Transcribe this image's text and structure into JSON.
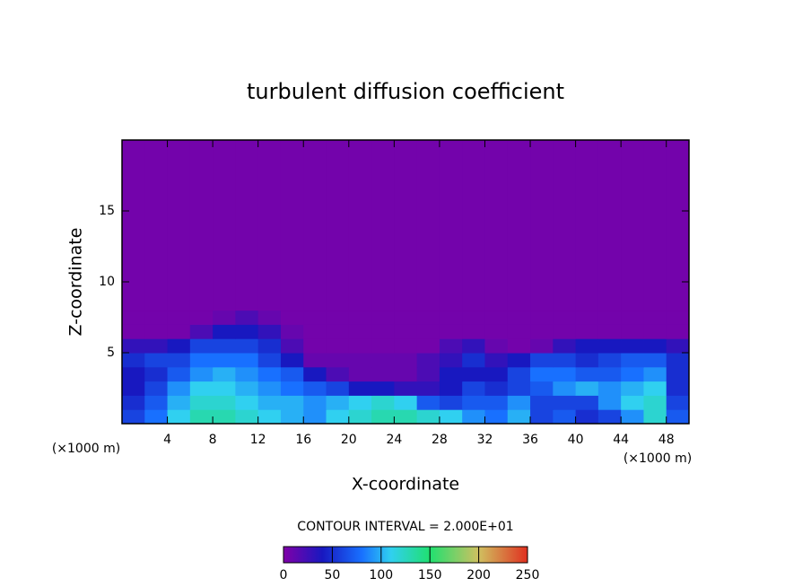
{
  "chart_data": {
    "type": "heatmap",
    "title": "turbulent diffusion coefficient",
    "x_label": "X-coordinate",
    "y_label": "Z-coordinate",
    "x_unit_label": "(×1000 m)",
    "y_unit_label": "(×1000 m)",
    "annotation": "CONTOUR INTERVAL = 2.000E+01",
    "xlim": [
      0,
      50
    ],
    "ylim": [
      0,
      20
    ],
    "xticks": [
      4,
      8,
      12,
      16,
      20,
      24,
      28,
      32,
      36,
      40,
      44,
      48
    ],
    "yticks": [
      5,
      10,
      15
    ],
    "x_edges": [
      0,
      2,
      4,
      6,
      8,
      10,
      12,
      14,
      16,
      18,
      20,
      22,
      24,
      26,
      28,
      30,
      32,
      34,
      36,
      38,
      40,
      42,
      44,
      46,
      48,
      50
    ],
    "y_edges": [
      0,
      1,
      2,
      3,
      4,
      5,
      6,
      7,
      8,
      20
    ],
    "values": [
      [
        60,
        80,
        110,
        130,
        130,
        120,
        110,
        100,
        90,
        110,
        120,
        130,
        130,
        120,
        110,
        90,
        80,
        100,
        60,
        70,
        50,
        60,
        90,
        120,
        70
      ],
      [
        50,
        70,
        100,
        120,
        120,
        110,
        100,
        100,
        90,
        100,
        110,
        120,
        110,
        70,
        60,
        70,
        70,
        90,
        60,
        60,
        60,
        90,
        110,
        120,
        60
      ],
      [
        40,
        60,
        90,
        110,
        110,
        100,
        90,
        80,
        70,
        60,
        40,
        40,
        30,
        30,
        40,
        60,
        50,
        60,
        70,
        90,
        100,
        90,
        100,
        110,
        50
      ],
      [
        40,
        50,
        70,
        90,
        100,
        90,
        80,
        70,
        40,
        20,
        10,
        10,
        10,
        20,
        40,
        40,
        40,
        60,
        80,
        80,
        70,
        70,
        80,
        90,
        50
      ],
      [
        50,
        60,
        60,
        80,
        80,
        80,
        60,
        40,
        10,
        10,
        10,
        10,
        10,
        20,
        30,
        50,
        30,
        40,
        60,
        60,
        50,
        60,
        70,
        70,
        50
      ],
      [
        30,
        30,
        40,
        60,
        60,
        60,
        50,
        20,
        5,
        5,
        5,
        5,
        5,
        5,
        20,
        30,
        10,
        5,
        10,
        30,
        40,
        40,
        40,
        40,
        30
      ],
      [
        5,
        5,
        5,
        20,
        40,
        40,
        30,
        10,
        5,
        5,
        5,
        5,
        5,
        5,
        5,
        5,
        5,
        5,
        5,
        5,
        5,
        5,
        5,
        5,
        5
      ],
      [
        5,
        5,
        5,
        5,
        10,
        20,
        10,
        5,
        5,
        5,
        5,
        5,
        5,
        5,
        5,
        5,
        5,
        5,
        5,
        5,
        5,
        5,
        5,
        5,
        5
      ],
      [
        5,
        5,
        5,
        5,
        5,
        5,
        5,
        5,
        5,
        5,
        5,
        5,
        5,
        5,
        5,
        5,
        5,
        5,
        5,
        5,
        5,
        5,
        5,
        5,
        5
      ]
    ],
    "colormap": [
      {
        "value": 0,
        "color": "#8000a8"
      },
      {
        "value": 40,
        "color": "#1818c0"
      },
      {
        "value": 80,
        "color": "#1870ff"
      },
      {
        "value": 110,
        "color": "#30d0f0"
      },
      {
        "value": 150,
        "color": "#20e070"
      },
      {
        "value": 200,
        "color": "#d0c060"
      },
      {
        "value": 250,
        "color": "#e03020"
      }
    ],
    "colorbar_lim": [
      0,
      250
    ],
    "colorbar_ticks": [
      0,
      50,
      100,
      150,
      200,
      250
    ]
  }
}
